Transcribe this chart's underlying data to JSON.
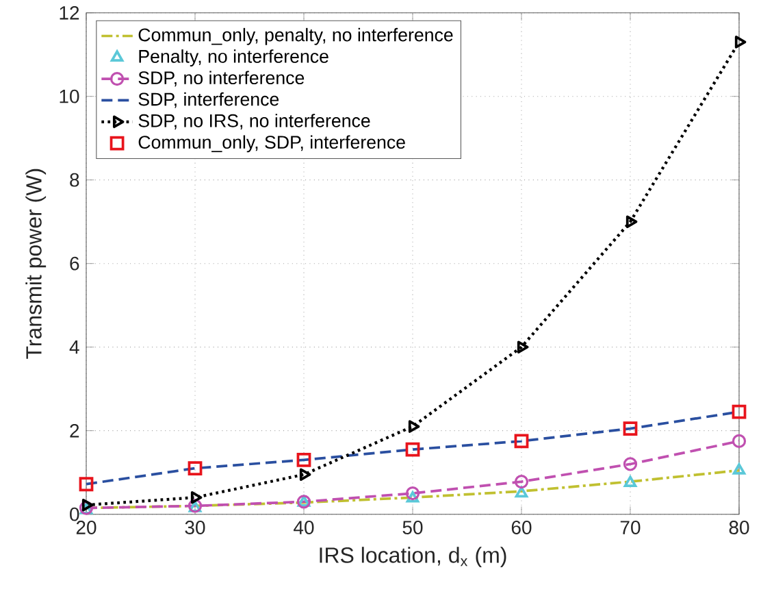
{
  "chart_data": {
    "type": "line",
    "xlabel": "IRS location, d$_{x}$ (m)",
    "ylabel": "Transmit power (W)",
    "x": [
      20,
      30,
      40,
      50,
      60,
      70,
      80
    ],
    "xlim": [
      20,
      80
    ],
    "xticks": [
      20,
      30,
      40,
      50,
      60,
      70,
      80
    ],
    "ylim": [
      0,
      12
    ],
    "yticks": [
      0,
      2,
      4,
      6,
      8,
      10,
      12
    ],
    "grid": true,
    "legend": "top left",
    "series": [
      {
        "name": "Commun_only, penalty, no interference",
        "color": "#c0c030",
        "values": [
          0.15,
          0.2,
          0.28,
          0.4,
          0.55,
          0.78,
          1.05
        ],
        "line_style": "dashdot",
        "marker": "none"
      },
      {
        "name": "Penalty, no interference",
        "type": "scatter",
        "color": "#5bc8d8",
        "values": [
          0.1,
          0.15,
          0.28,
          0.38,
          0.5,
          0.75,
          1.05
        ],
        "marker": "triangle"
      },
      {
        "name": "SDP, no interference",
        "color": "#c050b0",
        "values": [
          0.15,
          0.2,
          0.3,
          0.5,
          0.78,
          1.2,
          1.75
        ],
        "line_style": "dashed",
        "marker": "circle"
      },
      {
        "name": "SDP, interference",
        "color": "#2a4fa0",
        "values": [
          0.72,
          1.1,
          1.3,
          1.55,
          1.75,
          2.05,
          2.45
        ],
        "line_style": "dashed",
        "marker": "none"
      },
      {
        "name": "SDP, no IRS, no interference",
        "color": "#000000",
        "values": [
          0.22,
          0.4,
          0.95,
          2.1,
          4.0,
          7.0,
          11.3
        ],
        "line_style": "dotted",
        "marker": "triangle-right"
      },
      {
        "name": "Commun_only, SDP, interference",
        "type": "scatter",
        "color": "#e8141c",
        "values": [
          0.72,
          1.1,
          1.3,
          1.55,
          1.75,
          2.05,
          2.45
        ],
        "marker": "square"
      }
    ]
  }
}
